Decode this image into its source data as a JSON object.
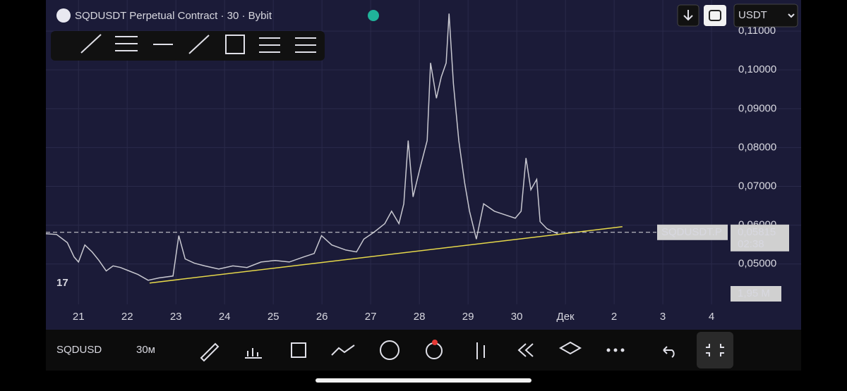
{
  "header": {
    "title": "SQDUSDT Perpetual Contract · 30 · Bybit",
    "currency": "USDT"
  },
  "bottom_bar": {
    "symbol": "SQDUSD",
    "interval": "30м"
  },
  "chart_data": {
    "type": "line",
    "x": [
      20.33,
      20.55,
      20.77,
      20.91,
      21.0,
      21.13,
      21.28,
      21.42,
      21.57,
      21.71,
      21.86,
      22.0,
      22.22,
      22.43,
      22.65,
      22.94,
      23.06,
      23.19,
      23.38,
      23.59,
      23.88,
      24.17,
      24.46,
      24.75,
      25.04,
      25.33,
      25.62,
      25.84,
      25.99,
      26.2,
      26.49,
      26.71,
      26.86,
      27.07,
      27.29,
      27.43,
      27.58,
      27.68,
      27.77,
      27.87,
      28.01,
      28.16,
      28.23,
      28.35,
      28.45,
      28.55,
      28.61,
      28.7,
      28.81,
      28.93,
      29.03,
      29.17,
      29.32,
      29.54,
      29.75,
      29.97,
      30.09,
      30.19,
      30.29,
      30.41,
      30.48,
      30.62,
      30.77,
      30.84
    ],
    "series": [
      {
        "name": "SQDUSDT.P",
        "color": "#c8c8d0",
        "values": [
          0.0578,
          0.0576,
          0.0555,
          0.0518,
          0.0505,
          0.0549,
          0.0531,
          0.0509,
          0.0482,
          0.0495,
          0.0491,
          0.0484,
          0.0473,
          0.0458,
          0.0464,
          0.0469,
          0.0573,
          0.0513,
          0.0502,
          0.0495,
          0.0487,
          0.0495,
          0.0491,
          0.0505,
          0.0509,
          0.0505,
          0.0518,
          0.0527,
          0.0573,
          0.0549,
          0.0536,
          0.0531,
          0.0564,
          0.0582,
          0.0604,
          0.0636,
          0.0604,
          0.0655,
          0.0818,
          0.0673,
          0.0745,
          0.0818,
          0.1018,
          0.0927,
          0.0982,
          0.1018,
          0.1145,
          0.0964,
          0.0818,
          0.0709,
          0.0636,
          0.0564,
          0.0655,
          0.0636,
          0.0627,
          0.0618,
          0.0636,
          0.0773,
          0.0691,
          0.0718,
          0.0609,
          0.0591,
          0.0582,
          0.0578
        ]
      }
    ],
    "trendline": {
      "x": [
        22.46,
        32.17
      ],
      "y": [
        0.0451,
        0.0596
      ],
      "color": "#e6d84a"
    },
    "last_price": {
      "value": 0.05815,
      "label": "0,05815",
      "name": "SQDUSDT.P",
      "countdown": "02:38"
    },
    "volume_label": "1,95 M",
    "xlim": [
      20.33,
      35.84
    ],
    "ylim": [
      0.0396,
      0.118
    ],
    "xticks": [
      21,
      22,
      23,
      24,
      25,
      26,
      27,
      28,
      29,
      30,
      {
        "value": 31,
        "label": "Дек"
      },
      {
        "value": 32,
        "label": "2"
      },
      {
        "value": 33,
        "label": "3"
      },
      {
        "value": 34,
        "label": "4"
      }
    ],
    "yticks": [
      {
        "value": 0.05,
        "label": "0,05000"
      },
      {
        "value": 0.06,
        "label": "0,06000"
      },
      {
        "value": 0.07,
        "label": "0,07000"
      },
      {
        "value": 0.08,
        "label": "0,08000"
      },
      {
        "value": 0.09,
        "label": "0,09000"
      },
      {
        "value": 0.1,
        "label": "0,10000"
      },
      {
        "value": 0.11,
        "label": "0,11000"
      }
    ],
    "grid": true
  }
}
